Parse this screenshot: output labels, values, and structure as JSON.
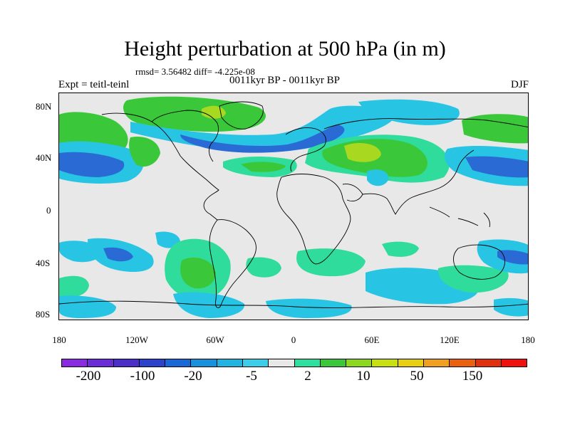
{
  "title": "Height perturbation at 500 hPa (in m)",
  "stats": "rmsd= 3.56482 diff= -4.225e-08",
  "left_label": "Expt = teitl-teinl",
  "center_label": "0011kyr BP - 0011kyr BP",
  "right_label": "DJF",
  "lat_ticks": [
    "80N",
    "40N",
    "0",
    "40S",
    "80S"
  ],
  "lon_ticks": [
    "180",
    "120W",
    "60W",
    "0",
    "60E",
    "120E",
    "180"
  ],
  "colorbar": {
    "colors": [
      "#8a2be2",
      "#6a2cd8",
      "#4c2fc9",
      "#2a42cc",
      "#1a68d8",
      "#1990dc",
      "#22b4e0",
      "#3ccde8",
      "#e8e8e8",
      "#2ee0a0",
      "#3ac83a",
      "#8cd820",
      "#c8e010",
      "#e8d010",
      "#f0a020",
      "#e86010",
      "#e03010",
      "#f01010"
    ],
    "labels": [
      "-200",
      "-100",
      "-20",
      "-5",
      "2",
      "10",
      "50",
      "150"
    ]
  },
  "colors": {
    "cyan": "#28c4e4",
    "blue": "#1a98dc",
    "dark_blue": "#2a6ad4",
    "teal_green": "#30dc9c",
    "green": "#3ac83a",
    "yellow_green": "#a8d820",
    "missing": "#e8e8e8"
  }
}
